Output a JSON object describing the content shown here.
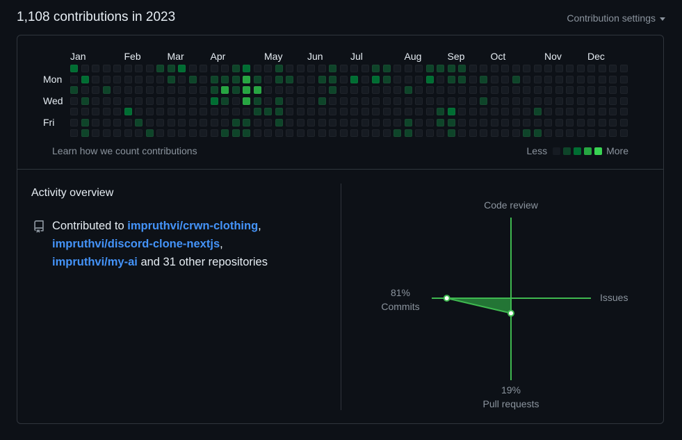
{
  "header": {
    "title": "1,108 contributions in 2023",
    "settings_label": "Contribution settings"
  },
  "calendar": {
    "months": [
      {
        "label": "Jan",
        "week": 0
      },
      {
        "label": "Feb",
        "week": 5
      },
      {
        "label": "Mar",
        "week": 9
      },
      {
        "label": "Apr",
        "week": 13
      },
      {
        "label": "May",
        "week": 18
      },
      {
        "label": "Jun",
        "week": 22
      },
      {
        "label": "Jul",
        "week": 26
      },
      {
        "label": "Aug",
        "week": 31
      },
      {
        "label": "Sep",
        "week": 35
      },
      {
        "label": "Oct",
        "week": 39
      },
      {
        "label": "Nov",
        "week": 44
      },
      {
        "label": "Dec",
        "week": 48
      }
    ],
    "day_labels": [
      {
        "label": "Mon",
        "row": 1
      },
      {
        "label": "Wed",
        "row": 3
      },
      {
        "label": "Fri",
        "row": 5
      }
    ],
    "weeks": [
      "2010000",
      "0201011",
      "0000000",
      "0010000",
      "0000000",
      "0000200",
      "0000010",
      "0000001",
      "1000000",
      "1100000",
      "2000000",
      "0100000",
      "0000000",
      "0112000",
      "0131001",
      "1110011",
      "2333011",
      "0131100",
      "0000100",
      "1101110",
      "0100000",
      "0000000",
      "0000000",
      "0101000",
      "1110000",
      "0000000",
      "0200000",
      "0000000",
      "1200000",
      "1100000",
      "0000001",
      "0010011",
      "0000000",
      "1200000",
      "1000110",
      "1100211",
      "1100000",
      "0000000",
      "0101000",
      "0000000",
      "0000000",
      "0100000",
      "0000001",
      "0000101",
      "0000000",
      "0000000",
      "0000000",
      "0000000",
      "0000000",
      "0000000",
      "0000000",
      "0000000"
    ],
    "learn_label": "Learn how we count contributions",
    "legend": {
      "less": "Less",
      "more": "More"
    },
    "colors": [
      "#161b22",
      "#0e4429",
      "#006d32",
      "#26a641",
      "#39d353"
    ]
  },
  "overview": {
    "title": "Activity overview",
    "contributed_prefix": "Contributed to ",
    "repos": [
      "impruthvi/crwn-clothing",
      "impruthvi/discord-clone-nextjs",
      "impruthvi/my-ai"
    ],
    "sep1": ", ",
    "sep2": ",",
    "suffix": " and 31 other repositories"
  },
  "radar": {
    "axes": {
      "top": "Code review",
      "left_pct": "81%",
      "left": "Commits",
      "right": "Issues",
      "bottom_pct": "19%",
      "bottom": "Pull requests"
    },
    "values": {
      "commits": 81,
      "pull_requests": 19,
      "code_review": 0,
      "issues": 0
    },
    "line_color": "#3fb950",
    "fill_color": "#2ea043"
  }
}
